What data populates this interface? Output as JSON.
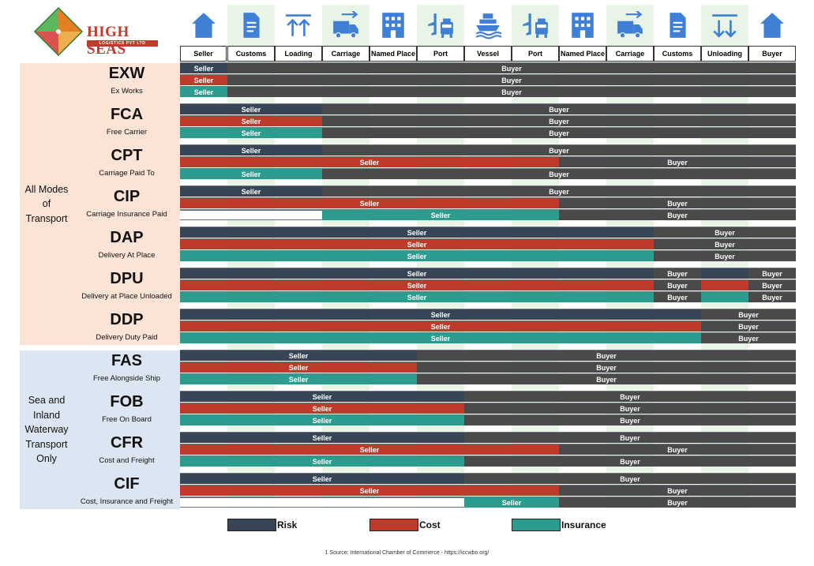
{
  "brand": {
    "name": "HIGH SEAS",
    "tagline": "LOGISTICS PVT LTD"
  },
  "colors": {
    "risk": "#374555",
    "cost": "#c0392b",
    "insurance": "#2a9d8f",
    "buyer": "#4a4a4a",
    "none": "#ffffff",
    "icon": "#3f7fd6",
    "all_modes_bg": "#fbe3d6",
    "sea_bg": "#dce6f2",
    "icon_col_bg": "#e8f5e6"
  },
  "chart_data": {
    "type": "table",
    "stages": [
      {
        "label": "Seller",
        "icon": "house-icon"
      },
      {
        "label": "Customs",
        "icon": "document-icon"
      },
      {
        "label": "Loading",
        "icon": "loading-arrows-icon"
      },
      {
        "label": "Carriage",
        "icon": "truck-icon"
      },
      {
        "label": "Named Place",
        "icon": "building-icon"
      },
      {
        "label": "Port",
        "icon": "airport-icon"
      },
      {
        "label": "Vessel",
        "icon": "ship-icon"
      },
      {
        "label": "Port",
        "icon": "airport-icon"
      },
      {
        "label": "Named Place",
        "icon": "building-icon"
      },
      {
        "label": "Carriage",
        "icon": "truck-icon"
      },
      {
        "label": "Customs",
        "icon": "document-icon"
      },
      {
        "label": "Unloading",
        "icon": "unloading-arrows-icon"
      },
      {
        "label": "Buyer",
        "icon": "house-icon"
      }
    ],
    "groups": [
      {
        "label": [
          "All Modes",
          "of",
          "Transport"
        ],
        "terms": [
          0,
          1,
          2,
          3,
          4,
          5,
          6
        ]
      },
      {
        "label": [
          "Sea and",
          "Inland",
          "Waterway",
          "Transport",
          "Only"
        ],
        "terms": [
          7,
          8,
          9,
          10
        ]
      }
    ],
    "terms": [
      {
        "code": "EXW",
        "name": "Ex Works",
        "rows": [
          {
            "type": "risk",
            "segments": [
              {
                "from": 0,
                "to": 1,
                "label": "Seller",
                "party": "seller"
              },
              {
                "from": 1,
                "to": 13,
                "label": "Buyer",
                "party": "buyer"
              }
            ]
          },
          {
            "type": "cost",
            "segments": [
              {
                "from": 0,
                "to": 1,
                "label": "Seller",
                "party": "seller"
              },
              {
                "from": 1,
                "to": 13,
                "label": "Buyer",
                "party": "buyer"
              }
            ]
          },
          {
            "type": "insurance",
            "segments": [
              {
                "from": 0,
                "to": 1,
                "label": "Seller",
                "party": "seller"
              },
              {
                "from": 1,
                "to": 13,
                "label": "Buyer",
                "party": "buyer"
              }
            ]
          }
        ]
      },
      {
        "code": "FCA",
        "name": "Free Carrier",
        "rows": [
          {
            "type": "risk",
            "segments": [
              {
                "from": 0,
                "to": 3,
                "label": "Seller",
                "party": "seller"
              },
              {
                "from": 3,
                "to": 13,
                "label": "Buyer",
                "party": "buyer"
              }
            ]
          },
          {
            "type": "cost",
            "segments": [
              {
                "from": 0,
                "to": 3,
                "label": "Seller",
                "party": "seller"
              },
              {
                "from": 3,
                "to": 13,
                "label": "Buyer",
                "party": "buyer"
              }
            ]
          },
          {
            "type": "insurance",
            "segments": [
              {
                "from": 0,
                "to": 3,
                "label": "Seller",
                "party": "seller"
              },
              {
                "from": 3,
                "to": 13,
                "label": "Buyer",
                "party": "buyer"
              }
            ]
          }
        ]
      },
      {
        "code": "CPT",
        "name": "Carriage Paid To",
        "rows": [
          {
            "type": "risk",
            "segments": [
              {
                "from": 0,
                "to": 3,
                "label": "Seller",
                "party": "seller"
              },
              {
                "from": 3,
                "to": 13,
                "label": "Buyer",
                "party": "buyer"
              }
            ]
          },
          {
            "type": "cost",
            "segments": [
              {
                "from": 0,
                "to": 8,
                "label": "Seller",
                "party": "seller"
              },
              {
                "from": 8,
                "to": 13,
                "label": "Buyer",
                "party": "buyer"
              }
            ]
          },
          {
            "type": "insurance",
            "segments": [
              {
                "from": 0,
                "to": 3,
                "label": "Seller",
                "party": "seller"
              },
              {
                "from": 3,
                "to": 13,
                "label": "Buyer",
                "party": "buyer"
              }
            ]
          }
        ]
      },
      {
        "code": "CIP",
        "name": "Carriage Insurance Paid",
        "rows": [
          {
            "type": "risk",
            "segments": [
              {
                "from": 0,
                "to": 3,
                "label": "Seller",
                "party": "seller"
              },
              {
                "from": 3,
                "to": 13,
                "label": "Buyer",
                "party": "buyer"
              }
            ]
          },
          {
            "type": "cost",
            "segments": [
              {
                "from": 0,
                "to": 8,
                "label": "Seller",
                "party": "seller"
              },
              {
                "from": 8,
                "to": 13,
                "label": "Buyer",
                "party": "buyer"
              }
            ]
          },
          {
            "type": "insurance",
            "segments": [
              {
                "from": 0,
                "to": 3,
                "label": "",
                "party": "none"
              },
              {
                "from": 3,
                "to": 8,
                "label": "Seller",
                "party": "seller"
              },
              {
                "from": 8,
                "to": 13,
                "label": "Buyer",
                "party": "buyer"
              }
            ]
          }
        ]
      },
      {
        "code": "DAP",
        "name": "Delivery At Place",
        "rows": [
          {
            "type": "risk",
            "segments": [
              {
                "from": 0,
                "to": 10,
                "label": "Seller",
                "party": "seller"
              },
              {
                "from": 10,
                "to": 13,
                "label": "Buyer",
                "party": "buyer"
              }
            ]
          },
          {
            "type": "cost",
            "segments": [
              {
                "from": 0,
                "to": 10,
                "label": "Seller",
                "party": "seller"
              },
              {
                "from": 10,
                "to": 13,
                "label": "Buyer",
                "party": "buyer"
              }
            ]
          },
          {
            "type": "insurance",
            "segments": [
              {
                "from": 0,
                "to": 10,
                "label": "Seller",
                "party": "seller"
              },
              {
                "from": 10,
                "to": 13,
                "label": "Buyer",
                "party": "buyer"
              }
            ]
          }
        ]
      },
      {
        "code": "DPU",
        "name": "Delivery at Place Unloaded",
        "rows": [
          {
            "type": "risk",
            "segments": [
              {
                "from": 0,
                "to": 10,
                "label": "Seller",
                "party": "seller"
              },
              {
                "from": 10,
                "to": 11,
                "label": "Buyer",
                "party": "buyer"
              },
              {
                "from": 11,
                "to": 12,
                "label": "",
                "party": "seller"
              },
              {
                "from": 12,
                "to": 13,
                "label": "Buyer",
                "party": "buyer"
              }
            ]
          },
          {
            "type": "cost",
            "segments": [
              {
                "from": 0,
                "to": 10,
                "label": "Seller",
                "party": "seller"
              },
              {
                "from": 10,
                "to": 11,
                "label": "Buyer",
                "party": "buyer"
              },
              {
                "from": 11,
                "to": 12,
                "label": "",
                "party": "seller"
              },
              {
                "from": 12,
                "to": 13,
                "label": "Buyer",
                "party": "buyer"
              }
            ]
          },
          {
            "type": "insurance",
            "segments": [
              {
                "from": 0,
                "to": 10,
                "label": "Seller",
                "party": "seller"
              },
              {
                "from": 10,
                "to": 11,
                "label": "Buyer",
                "party": "buyer"
              },
              {
                "from": 11,
                "to": 12,
                "label": "",
                "party": "seller"
              },
              {
                "from": 12,
                "to": 13,
                "label": "Buyer",
                "party": "buyer"
              }
            ]
          }
        ]
      },
      {
        "code": "DDP",
        "name": "Delivery Duty Paid",
        "rows": [
          {
            "type": "risk",
            "segments": [
              {
                "from": 0,
                "to": 11,
                "label": "Seller",
                "party": "seller"
              },
              {
                "from": 11,
                "to": 13,
                "label": "Buyer",
                "party": "buyer"
              }
            ]
          },
          {
            "type": "cost",
            "segments": [
              {
                "from": 0,
                "to": 11,
                "label": "Seller",
                "party": "seller"
              },
              {
                "from": 11,
                "to": 13,
                "label": "Buyer",
                "party": "buyer"
              }
            ]
          },
          {
            "type": "insurance",
            "segments": [
              {
                "from": 0,
                "to": 11,
                "label": "Seller",
                "party": "seller"
              },
              {
                "from": 11,
                "to": 13,
                "label": "Buyer",
                "party": "buyer"
              }
            ]
          }
        ]
      },
      {
        "code": "FAS",
        "name": "Free Alongside Ship",
        "rows": [
          {
            "type": "risk",
            "segments": [
              {
                "from": 0,
                "to": 5,
                "label": "Seller",
                "party": "seller"
              },
              {
                "from": 5,
                "to": 13,
                "label": "Buyer",
                "party": "buyer"
              }
            ]
          },
          {
            "type": "cost",
            "segments": [
              {
                "from": 0,
                "to": 5,
                "label": "Seller",
                "party": "seller"
              },
              {
                "from": 5,
                "to": 13,
                "label": "Buyer",
                "party": "buyer"
              }
            ]
          },
          {
            "type": "insurance",
            "segments": [
              {
                "from": 0,
                "to": 5,
                "label": "Seller",
                "party": "seller"
              },
              {
                "from": 5,
                "to": 13,
                "label": "Buyer",
                "party": "buyer"
              }
            ]
          }
        ]
      },
      {
        "code": "FOB",
        "name": "Free On Board",
        "rows": [
          {
            "type": "risk",
            "segments": [
              {
                "from": 0,
                "to": 6,
                "label": "Seller",
                "party": "seller"
              },
              {
                "from": 6,
                "to": 13,
                "label": "Buyer",
                "party": "buyer"
              }
            ]
          },
          {
            "type": "cost",
            "segments": [
              {
                "from": 0,
                "to": 6,
                "label": "Seller",
                "party": "seller"
              },
              {
                "from": 6,
                "to": 13,
                "label": "Buyer",
                "party": "buyer"
              }
            ]
          },
          {
            "type": "insurance",
            "segments": [
              {
                "from": 0,
                "to": 6,
                "label": "Seller",
                "party": "seller"
              },
              {
                "from": 6,
                "to": 13,
                "label": "Buyer",
                "party": "buyer"
              }
            ]
          }
        ]
      },
      {
        "code": "CFR",
        "name": "Cost and Freight",
        "rows": [
          {
            "type": "risk",
            "segments": [
              {
                "from": 0,
                "to": 6,
                "label": "Seller",
                "party": "seller"
              },
              {
                "from": 6,
                "to": 13,
                "label": "Buyer",
                "party": "buyer"
              }
            ]
          },
          {
            "type": "cost",
            "segments": [
              {
                "from": 0,
                "to": 8,
                "label": "Seller",
                "party": "seller"
              },
              {
                "from": 8,
                "to": 13,
                "label": "Buyer",
                "party": "buyer"
              }
            ]
          },
          {
            "type": "insurance",
            "segments": [
              {
                "from": 0,
                "to": 6,
                "label": "Seller",
                "party": "seller"
              },
              {
                "from": 6,
                "to": 13,
                "label": "Buyer",
                "party": "buyer"
              }
            ]
          }
        ]
      },
      {
        "code": "CIF",
        "name": "Cost, Insurance and Freight",
        "rows": [
          {
            "type": "risk",
            "segments": [
              {
                "from": 0,
                "to": 6,
                "label": "Seller",
                "party": "seller"
              },
              {
                "from": 6,
                "to": 13,
                "label": "Buyer",
                "party": "buyer"
              }
            ]
          },
          {
            "type": "cost",
            "segments": [
              {
                "from": 0,
                "to": 8,
                "label": "Seller",
                "party": "seller"
              },
              {
                "from": 8,
                "to": 13,
                "label": "Buyer",
                "party": "buyer"
              }
            ]
          },
          {
            "type": "insurance",
            "segments": [
              {
                "from": 0,
                "to": 6,
                "label": "",
                "party": "none"
              },
              {
                "from": 6,
                "to": 8,
                "label": "Seller",
                "party": "seller"
              },
              {
                "from": 8,
                "to": 13,
                "label": "Buyer",
                "party": "buyer"
              }
            ]
          }
        ]
      }
    ],
    "legend": [
      {
        "label": "Risk",
        "type": "risk"
      },
      {
        "label": "Cost",
        "type": "cost"
      },
      {
        "label": "Insurance",
        "type": "insurance"
      }
    ]
  },
  "footnote": "1 Source: International Chamber of Commerce - https://iccwbo.org/"
}
